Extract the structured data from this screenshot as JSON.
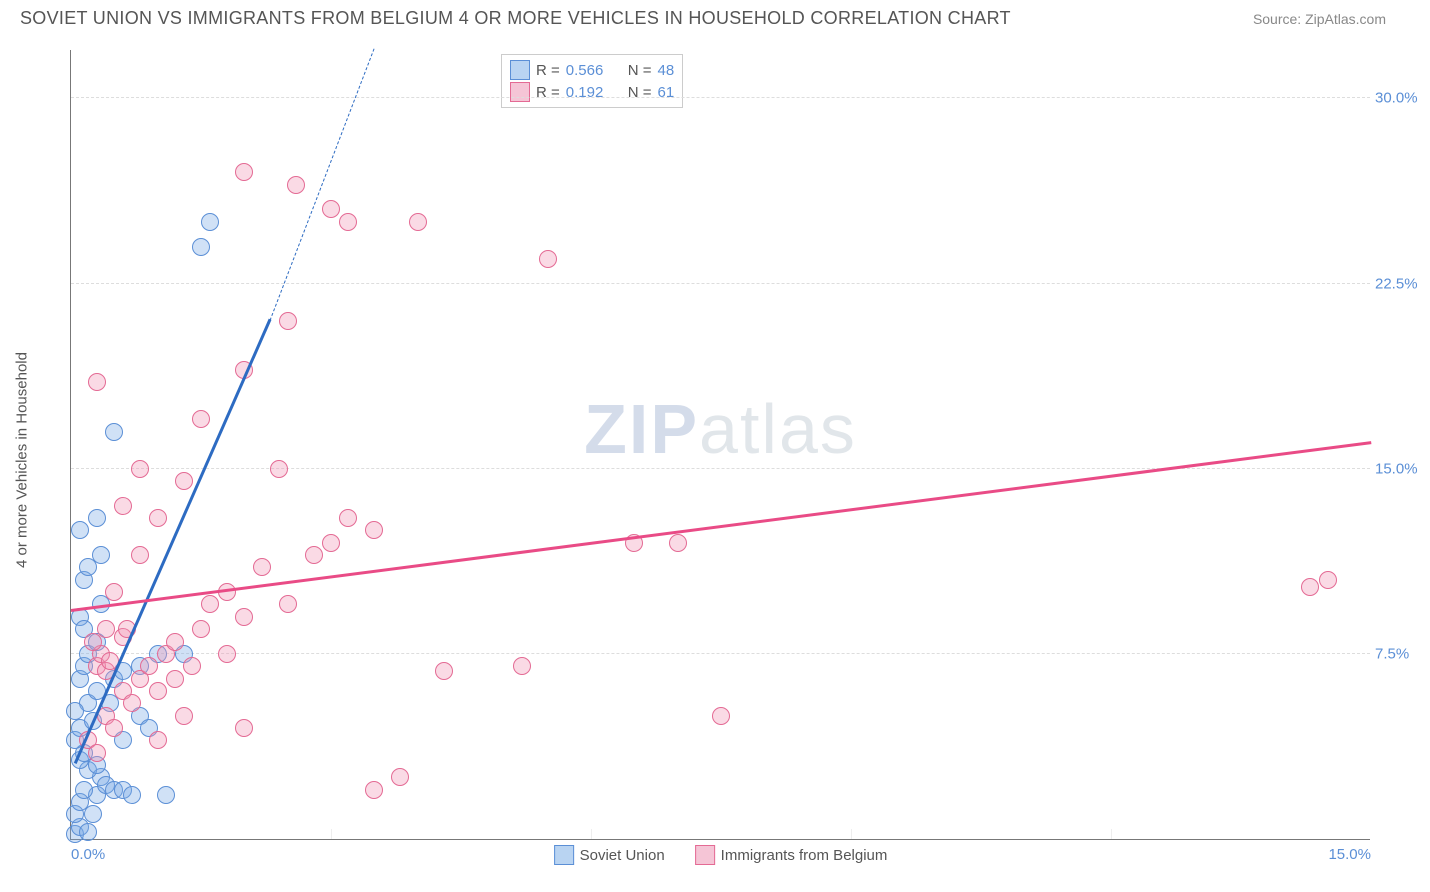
{
  "header": {
    "title": "SOVIET UNION VS IMMIGRANTS FROM BELGIUM 4 OR MORE VEHICLES IN HOUSEHOLD CORRELATION CHART",
    "source": "Source: ZipAtlas.com"
  },
  "chart": {
    "type": "scatter",
    "y_axis_label": "4 or more Vehicles in Household",
    "xlim": [
      0,
      15
    ],
    "ylim": [
      0,
      32
    ],
    "x_ticks": [
      {
        "pos": 0,
        "label": "0.0%"
      },
      {
        "pos": 15,
        "label": "15.0%"
      }
    ],
    "x_minor_ticks": [
      3,
      6,
      9,
      12
    ],
    "y_ticks": [
      {
        "pos": 7.5,
        "label": "7.5%"
      },
      {
        "pos": 15,
        "label": "15.0%"
      },
      {
        "pos": 22.5,
        "label": "22.5%"
      },
      {
        "pos": 30,
        "label": "30.0%"
      }
    ],
    "background_color": "#ffffff",
    "grid_color": "#dddddd",
    "axis_color": "#777777",
    "tick_label_color": "#5b8fd6",
    "axis_label_color": "#555555",
    "marker_radius": 9,
    "marker_stroke_width": 1.5,
    "series": [
      {
        "id": "soviet",
        "label": "Soviet Union",
        "fill": "rgba(120,170,230,0.35)",
        "stroke": "#5b8fd6",
        "swatch_fill": "#b9d4f2",
        "swatch_border": "#5b8fd6",
        "trend": {
          "x1": 0.05,
          "y1": 3.0,
          "x2": 2.3,
          "y2": 21.0,
          "solid_until_x": 2.3,
          "dashed_to": {
            "x": 3.5,
            "y": 32
          }
        },
        "trend_color": "#2d6bc2",
        "trend_width": 2.5,
        "R": "0.566",
        "N": "48",
        "points": [
          [
            0.05,
            0.2
          ],
          [
            0.1,
            0.5
          ],
          [
            0.05,
            1.0
          ],
          [
            0.1,
            1.5
          ],
          [
            0.2,
            0.3
          ],
          [
            0.25,
            1.0
          ],
          [
            0.3,
            1.8
          ],
          [
            0.35,
            2.5
          ],
          [
            0.15,
            2.0
          ],
          [
            0.2,
            2.8
          ],
          [
            0.1,
            3.2
          ],
          [
            0.15,
            3.5
          ],
          [
            0.05,
            4.0
          ],
          [
            0.1,
            4.5
          ],
          [
            0.3,
            3.0
          ],
          [
            0.4,
            2.2
          ],
          [
            0.5,
            2.0
          ],
          [
            0.6,
            2.0
          ],
          [
            0.7,
            1.8
          ],
          [
            0.8,
            5.0
          ],
          [
            0.9,
            4.5
          ],
          [
            0.2,
            5.5
          ],
          [
            0.3,
            6.0
          ],
          [
            0.1,
            6.5
          ],
          [
            0.15,
            7.0
          ],
          [
            0.2,
            7.5
          ],
          [
            0.3,
            8.0
          ],
          [
            0.1,
            9.0
          ],
          [
            0.35,
            9.5
          ],
          [
            0.5,
            6.5
          ],
          [
            0.6,
            6.8
          ],
          [
            0.8,
            7.0
          ],
          [
            1.0,
            7.5
          ],
          [
            0.15,
            10.5
          ],
          [
            0.2,
            11.0
          ],
          [
            0.1,
            12.5
          ],
          [
            0.3,
            13.0
          ],
          [
            0.5,
            16.5
          ],
          [
            0.6,
            4.0
          ],
          [
            1.1,
            1.8
          ],
          [
            1.3,
            7.5
          ],
          [
            1.5,
            24.0
          ],
          [
            1.6,
            25.0
          ],
          [
            0.25,
            4.8
          ],
          [
            0.45,
            5.5
          ],
          [
            0.15,
            8.5
          ],
          [
            0.05,
            5.2
          ],
          [
            0.35,
            11.5
          ]
        ]
      },
      {
        "id": "belgium",
        "label": "Immigrants from Belgium",
        "fill": "rgba(240,150,180,0.35)",
        "stroke": "#e46a94",
        "swatch_fill": "#f5c5d6",
        "swatch_border": "#e46a94",
        "trend": {
          "x1": 0.0,
          "y1": 9.2,
          "x2": 15.0,
          "y2": 16.0
        },
        "trend_color": "#e94b86",
        "trend_width": 2.5,
        "R": "0.192",
        "N": "61",
        "points": [
          [
            0.2,
            4.0
          ],
          [
            0.3,
            3.5
          ],
          [
            0.4,
            5.0
          ],
          [
            0.5,
            4.5
          ],
          [
            0.6,
            6.0
          ],
          [
            0.7,
            5.5
          ],
          [
            0.8,
            6.5
          ],
          [
            0.9,
            7.0
          ],
          [
            1.0,
            6.0
          ],
          [
            1.1,
            7.5
          ],
          [
            1.2,
            8.0
          ],
          [
            1.3,
            5.0
          ],
          [
            1.4,
            7.0
          ],
          [
            1.5,
            8.5
          ],
          [
            1.6,
            9.5
          ],
          [
            1.8,
            10.0
          ],
          [
            2.0,
            9.0
          ],
          [
            2.2,
            11.0
          ],
          [
            2.4,
            15.0
          ],
          [
            2.0,
            27.0
          ],
          [
            2.6,
            26.5
          ],
          [
            0.4,
            8.5
          ],
          [
            0.5,
            10.0
          ],
          [
            0.6,
            13.5
          ],
          [
            0.8,
            15.0
          ],
          [
            1.5,
            17.0
          ],
          [
            2.0,
            19.0
          ],
          [
            2.5,
            21.0
          ],
          [
            4.3,
            6.8
          ],
          [
            5.2,
            7.0
          ],
          [
            3.0,
            12.0
          ],
          [
            3.5,
            12.5
          ],
          [
            3.2,
            25.0
          ],
          [
            3.0,
            25.5
          ],
          [
            3.8,
            2.5
          ],
          [
            3.5,
            2.0
          ],
          [
            4.0,
            25.0
          ],
          [
            5.5,
            23.5
          ],
          [
            6.5,
            12.0
          ],
          [
            7.0,
            12.0
          ],
          [
            7.5,
            5.0
          ],
          [
            0.3,
            7.0
          ],
          [
            0.35,
            7.5
          ],
          [
            0.25,
            8.0
          ],
          [
            0.4,
            6.8
          ],
          [
            0.45,
            7.2
          ],
          [
            0.6,
            8.2
          ],
          [
            0.65,
            8.5
          ],
          [
            1.0,
            4.0
          ],
          [
            1.2,
            6.5
          ],
          [
            1.3,
            14.5
          ],
          [
            1.8,
            7.5
          ],
          [
            2.5,
            9.5
          ],
          [
            2.8,
            11.5
          ],
          [
            3.2,
            13.0
          ],
          [
            0.3,
            18.5
          ],
          [
            0.8,
            11.5
          ],
          [
            2.0,
            4.5
          ],
          [
            14.5,
            10.5
          ],
          [
            14.3,
            10.2
          ],
          [
            1.0,
            13.0
          ]
        ]
      }
    ],
    "watermark": {
      "part1": "ZIP",
      "part2": "atlas"
    }
  },
  "bottom_legend": {
    "items": [
      "Soviet Union",
      "Immigrants from Belgium"
    ]
  }
}
